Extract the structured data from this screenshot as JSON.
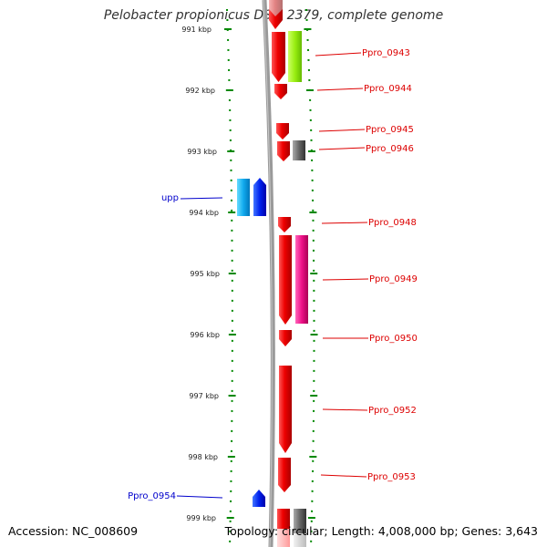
{
  "title": "Pelobacter propionicus DSM 2379, complete genome",
  "accession": "Accession: NC_008609",
  "summary": "Topology: circular; Length: 4,008,000 bp; Genes: 3,643",
  "colors": {
    "label_red": "#dd0000",
    "label_blue": "#0000cc",
    "gene_red": "#ee0000",
    "gene_blue": "#0033ff",
    "gene_cyan": "#22aaee",
    "gene_green": "#99ee22",
    "gene_magenta": "#ee2299",
    "gene_gray": "#666666",
    "tick_green": "#008800"
  },
  "scale_labels": [
    "991 kbp",
    "992 kbp",
    "993 kbp",
    "994 kbp",
    "995 kbp",
    "996 kbp",
    "997 kbp",
    "998 kbp",
    "999 kbp"
  ],
  "gene_labels": [
    "Ppro_0943",
    "Ppro_0944",
    "Ppro_0945",
    "Ppro_0946",
    "Ppro_0948",
    "Ppro_0949",
    "Ppro_0950",
    "Ppro_0952",
    "Ppro_0953",
    "upp",
    "Ppro_0954"
  ]
}
